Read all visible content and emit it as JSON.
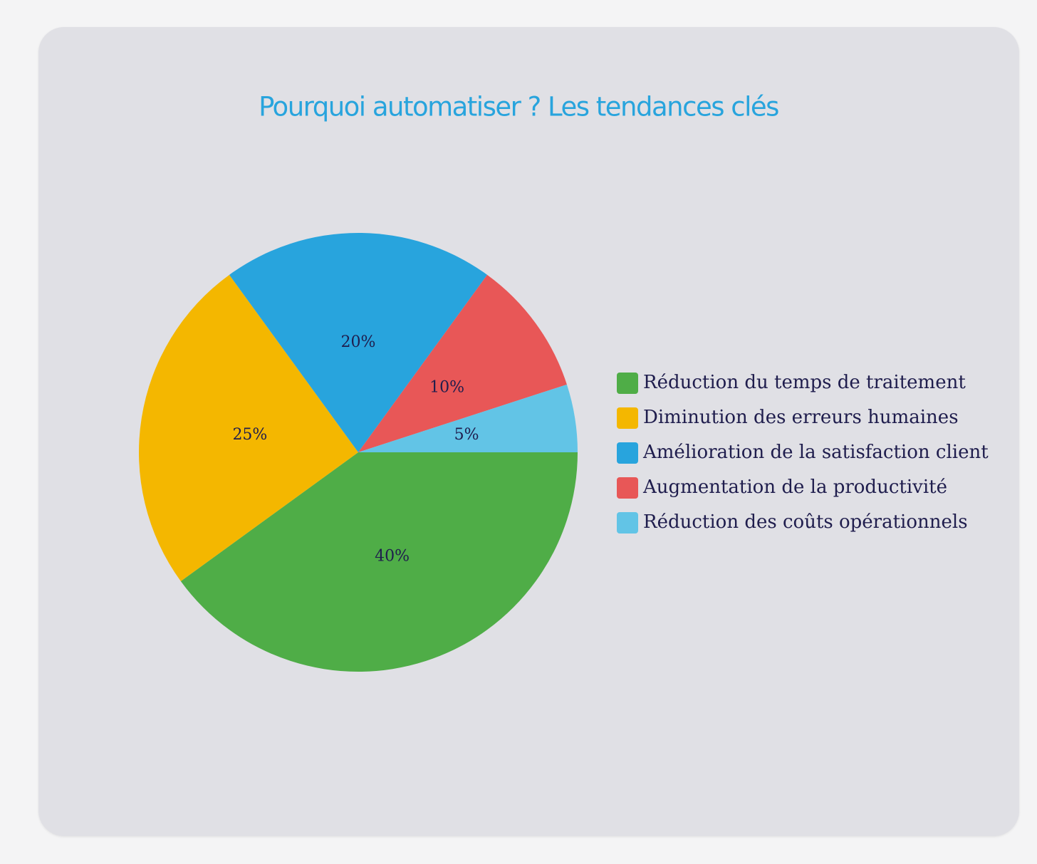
{
  "chart_data": {
    "type": "pie",
    "title": "Pourquoi automatiser ? Les tendances clés",
    "categories": [
      "Réduction du temps de traitement",
      "Diminution des erreurs humaines",
      "Amélioration de la satisfaction client",
      "Augmentation de la productivité",
      "Réduction des coûts opérationnels"
    ],
    "values": [
      40,
      25,
      20,
      10,
      5
    ],
    "value_labels": [
      "40%",
      "25%",
      "20%",
      "10%",
      "5%"
    ],
    "colors": [
      "#4fad47",
      "#f4b700",
      "#28a4dd",
      "#e85757",
      "#62c4e6"
    ],
    "legend_position": "right"
  }
}
